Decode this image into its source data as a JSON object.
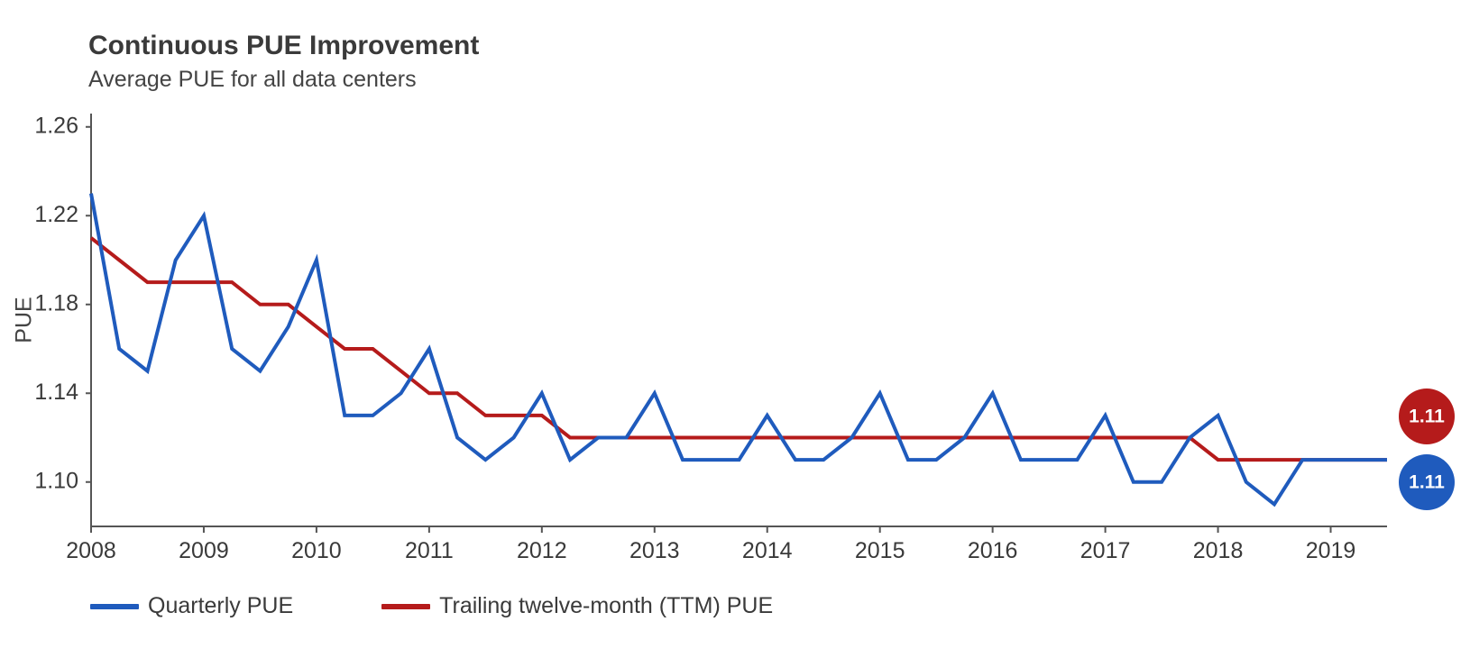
{
  "chart_data": {
    "type": "line",
    "title": "Continuous PUE Improvement",
    "subtitle": "Average PUE for all data centers",
    "xlabel": "",
    "ylabel": "PUE",
    "xlim": [
      2008.0,
      2019.5
    ],
    "ylim": [
      1.08,
      1.266
    ],
    "yticks": [
      1.1,
      1.14,
      1.18,
      1.22,
      1.26
    ],
    "ytick_labels": [
      "1.10",
      "1.14",
      "1.18",
      "1.22",
      "1.26"
    ],
    "xticks": [
      2008,
      2009,
      2010,
      2011,
      2012,
      2013,
      2014,
      2015,
      2016,
      2017,
      2018,
      2019
    ],
    "xtick_labels": [
      "2008",
      "2009",
      "2010",
      "2011",
      "2012",
      "2013",
      "2014",
      "2015",
      "2016",
      "2017",
      "2018",
      "2019"
    ],
    "grid": false,
    "legend_position": "bottom-left",
    "x": [
      2008.0,
      2008.25,
      2008.5,
      2008.75,
      2009.0,
      2009.25,
      2009.5,
      2009.75,
      2010.0,
      2010.25,
      2010.5,
      2010.75,
      2011.0,
      2011.25,
      2011.5,
      2011.75,
      2012.0,
      2012.25,
      2012.5,
      2012.75,
      2013.0,
      2013.25,
      2013.5,
      2013.75,
      2014.0,
      2014.25,
      2014.5,
      2014.75,
      2015.0,
      2015.25,
      2015.5,
      2015.75,
      2016.0,
      2016.25,
      2016.5,
      2016.75,
      2017.0,
      2017.25,
      2017.5,
      2017.75,
      2018.0,
      2018.25,
      2018.5,
      2018.75,
      2019.0,
      2019.25,
      2019.5
    ],
    "series": [
      {
        "name": "Quarterly PUE",
        "color": "#1f5bbd",
        "values": [
          1.23,
          1.16,
          1.15,
          1.2,
          1.22,
          1.16,
          1.15,
          1.17,
          1.2,
          1.13,
          1.13,
          1.14,
          1.16,
          1.12,
          1.11,
          1.12,
          1.14,
          1.11,
          1.12,
          1.12,
          1.14,
          1.11,
          1.11,
          1.11,
          1.13,
          1.11,
          1.11,
          1.12,
          1.14,
          1.11,
          1.11,
          1.12,
          1.14,
          1.11,
          1.11,
          1.11,
          1.13,
          1.1,
          1.1,
          1.12,
          1.13,
          1.1,
          1.09,
          1.11,
          1.11,
          1.11,
          1.11
        ],
        "end_label": "1.11"
      },
      {
        "name": "Trailing twelve-month (TTM) PUE",
        "color": "#b51b1b",
        "values": [
          1.21,
          1.2,
          1.19,
          1.19,
          1.19,
          1.19,
          1.18,
          1.18,
          1.17,
          1.16,
          1.16,
          1.15,
          1.14,
          1.14,
          1.13,
          1.13,
          1.13,
          1.12,
          1.12,
          1.12,
          1.12,
          1.12,
          1.12,
          1.12,
          1.12,
          1.12,
          1.12,
          1.12,
          1.12,
          1.12,
          1.12,
          1.12,
          1.12,
          1.12,
          1.12,
          1.12,
          1.12,
          1.12,
          1.12,
          1.12,
          1.11,
          1.11,
          1.11,
          1.11,
          1.11,
          1.11,
          1.11
        ],
        "end_label": "1.11"
      }
    ]
  }
}
